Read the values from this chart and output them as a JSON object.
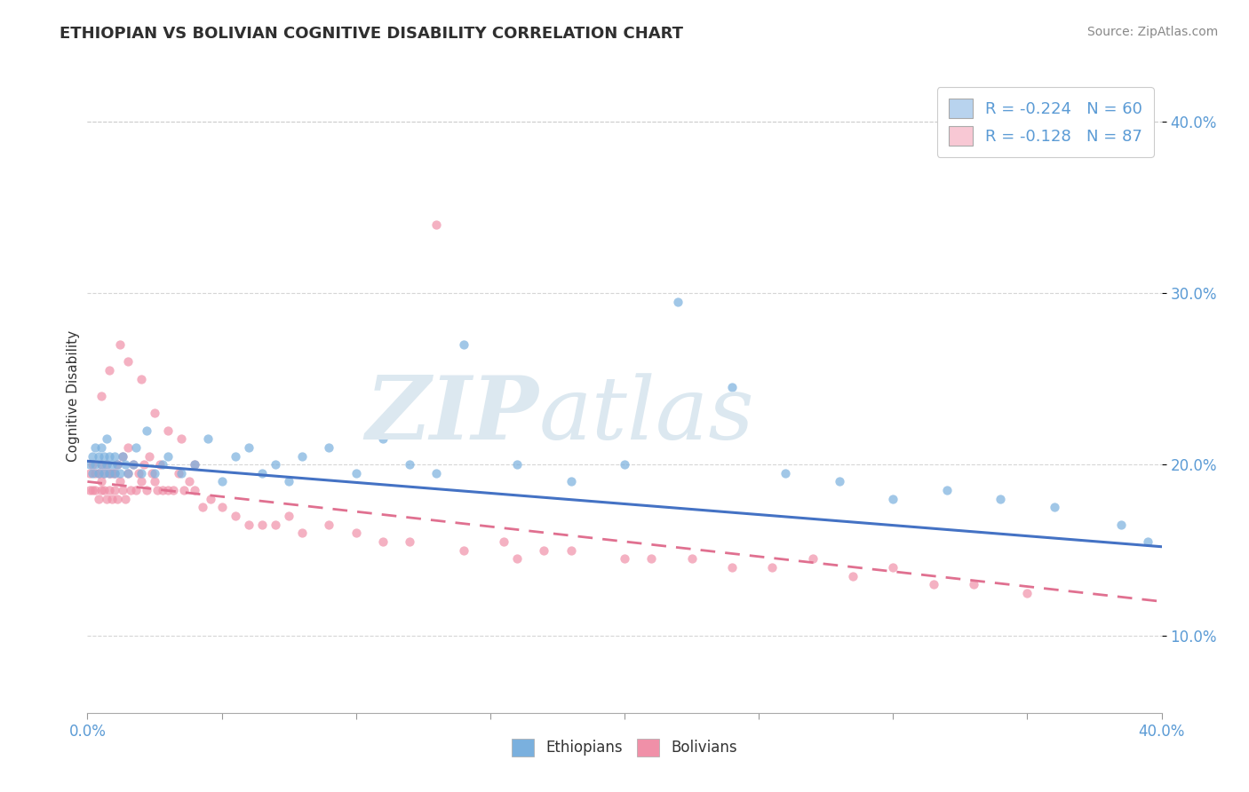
{
  "title": "ETHIOPIAN VS BOLIVIAN COGNITIVE DISABILITY CORRELATION CHART",
  "source": "Source: ZipAtlas.com",
  "ylabel": "Cognitive Disability",
  "xlim": [
    0.0,
    0.4
  ],
  "ylim": [
    0.055,
    0.425
  ],
  "yticks": [
    0.1,
    0.2,
    0.3,
    0.4
  ],
  "ytick_labels": [
    "10.0%",
    "20.0%",
    "30.0%",
    "40.0%"
  ],
  "legend_entries": [
    {
      "color": "#b8d3ee",
      "R": "-0.224",
      "N": "60"
    },
    {
      "color": "#f8c8d4",
      "R": "-0.128",
      "N": "87"
    }
  ],
  "legend_labels": [
    "Ethiopians",
    "Bolivians"
  ],
  "ethiopian_color": "#7ab0de",
  "bolivian_color": "#f090a8",
  "trend_ethiopian_color": "#4472c4",
  "trend_bolivian_color": "#e07090",
  "watermark_color": "#dce8f0",
  "background_color": "#ffffff",
  "ethiopians_x": [
    0.001,
    0.002,
    0.002,
    0.003,
    0.003,
    0.004,
    0.004,
    0.005,
    0.005,
    0.006,
    0.006,
    0.007,
    0.007,
    0.008,
    0.008,
    0.009,
    0.01,
    0.01,
    0.011,
    0.012,
    0.013,
    0.014,
    0.015,
    0.017,
    0.018,
    0.02,
    0.022,
    0.025,
    0.028,
    0.03,
    0.035,
    0.04,
    0.045,
    0.05,
    0.055,
    0.06,
    0.065,
    0.07,
    0.075,
    0.08,
    0.09,
    0.1,
    0.11,
    0.12,
    0.13,
    0.14,
    0.15,
    0.16,
    0.18,
    0.2,
    0.22,
    0.24,
    0.26,
    0.28,
    0.3,
    0.32,
    0.34,
    0.36,
    0.385,
    0.395
  ],
  "ethiopians_y": [
    0.2,
    0.205,
    0.195,
    0.2,
    0.21,
    0.195,
    0.205,
    0.2,
    0.21,
    0.195,
    0.205,
    0.2,
    0.215,
    0.195,
    0.205,
    0.2,
    0.205,
    0.195,
    0.2,
    0.195,
    0.205,
    0.2,
    0.195,
    0.2,
    0.21,
    0.195,
    0.22,
    0.195,
    0.2,
    0.205,
    0.195,
    0.2,
    0.215,
    0.19,
    0.205,
    0.21,
    0.195,
    0.2,
    0.19,
    0.205,
    0.21,
    0.195,
    0.215,
    0.2,
    0.195,
    0.27,
    0.22,
    0.2,
    0.19,
    0.2,
    0.295,
    0.245,
    0.195,
    0.19,
    0.18,
    0.185,
    0.18,
    0.175,
    0.165,
    0.155
  ],
  "bolivians_x": [
    0.001,
    0.001,
    0.002,
    0.002,
    0.003,
    0.003,
    0.004,
    0.004,
    0.005,
    0.005,
    0.005,
    0.006,
    0.006,
    0.007,
    0.007,
    0.008,
    0.008,
    0.009,
    0.009,
    0.01,
    0.01,
    0.011,
    0.011,
    0.012,
    0.013,
    0.013,
    0.014,
    0.015,
    0.015,
    0.016,
    0.017,
    0.018,
    0.019,
    0.02,
    0.021,
    0.022,
    0.023,
    0.024,
    0.025,
    0.026,
    0.027,
    0.028,
    0.03,
    0.032,
    0.034,
    0.036,
    0.038,
    0.04,
    0.043,
    0.046,
    0.05,
    0.055,
    0.06,
    0.065,
    0.07,
    0.075,
    0.08,
    0.09,
    0.1,
    0.11,
    0.12,
    0.13,
    0.14,
    0.155,
    0.16,
    0.17,
    0.18,
    0.2,
    0.21,
    0.225,
    0.24,
    0.255,
    0.27,
    0.285,
    0.3,
    0.315,
    0.33,
    0.35,
    0.005,
    0.008,
    0.012,
    0.015,
    0.02,
    0.025,
    0.03,
    0.035,
    0.04
  ],
  "bolivians_y": [
    0.185,
    0.195,
    0.185,
    0.2,
    0.185,
    0.195,
    0.18,
    0.195,
    0.185,
    0.2,
    0.19,
    0.185,
    0.195,
    0.18,
    0.2,
    0.185,
    0.195,
    0.18,
    0.195,
    0.185,
    0.195,
    0.18,
    0.2,
    0.19,
    0.185,
    0.205,
    0.18,
    0.195,
    0.21,
    0.185,
    0.2,
    0.185,
    0.195,
    0.19,
    0.2,
    0.185,
    0.205,
    0.195,
    0.19,
    0.185,
    0.2,
    0.185,
    0.185,
    0.185,
    0.195,
    0.185,
    0.19,
    0.185,
    0.175,
    0.18,
    0.175,
    0.17,
    0.165,
    0.165,
    0.165,
    0.17,
    0.16,
    0.165,
    0.16,
    0.155,
    0.155,
    0.34,
    0.15,
    0.155,
    0.145,
    0.15,
    0.15,
    0.145,
    0.145,
    0.145,
    0.14,
    0.14,
    0.145,
    0.135,
    0.14,
    0.13,
    0.13,
    0.125,
    0.24,
    0.255,
    0.27,
    0.26,
    0.25,
    0.23,
    0.22,
    0.215,
    0.2
  ],
  "eth_trend_x0": 0.0,
  "eth_trend_y0": 0.202,
  "eth_trend_x1": 0.4,
  "eth_trend_y1": 0.152,
  "bol_trend_x0": 0.0,
  "bol_trend_y0": 0.19,
  "bol_trend_x1": 0.4,
  "bol_trend_y1": 0.12
}
